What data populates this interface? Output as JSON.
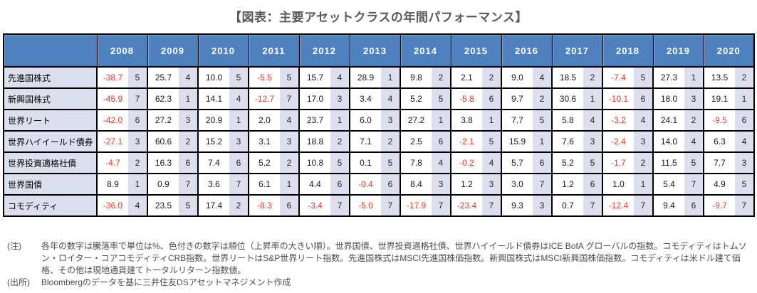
{
  "title": "【図表：主要アセットクラスの年間パフォーマンス】",
  "colors": {
    "header_bg": "#4E81BD",
    "header_text": "#FFFFFF",
    "rank_cell_bg": "#DBDFEE",
    "label_cell_bg": "#DBDFEE",
    "negative_value": "#E43730",
    "grid_border": "#000000",
    "title_text": "#595959",
    "note_text": "#4D4D4D"
  },
  "chart_data": {
    "type": "table",
    "title": "【図表：主要アセットクラスの年間パフォーマンス】",
    "unit": "%（騰落率）、色付きセルは順位",
    "years": [
      "2008",
      "2009",
      "2010",
      "2011",
      "2012",
      "2013",
      "2014",
      "2015",
      "2016",
      "2017",
      "2018",
      "2019",
      "2020"
    ],
    "rows": [
      {
        "label": "先進国株式",
        "cells": [
          [
            "-38.7",
            "5"
          ],
          [
            "25.7",
            "4"
          ],
          [
            "10.0",
            "5"
          ],
          [
            "-5.5",
            "5"
          ],
          [
            "15.7",
            "4"
          ],
          [
            "28.9",
            "1"
          ],
          [
            "9.8",
            "2"
          ],
          [
            "2.1",
            "2"
          ],
          [
            "9.0",
            "4"
          ],
          [
            "18.5",
            "2"
          ],
          [
            "-7.4",
            "5"
          ],
          [
            "27.3",
            "1"
          ],
          [
            "13.5",
            "2"
          ]
        ]
      },
      {
        "label": "新興国株式",
        "cells": [
          [
            "-45.9",
            "7"
          ],
          [
            "62.3",
            "1"
          ],
          [
            "14.1",
            "4"
          ],
          [
            "-12.7",
            "7"
          ],
          [
            "17.0",
            "3"
          ],
          [
            "3.4",
            "4"
          ],
          [
            "5.2",
            "5"
          ],
          [
            "-5.8",
            "6"
          ],
          [
            "9.7",
            "2"
          ],
          [
            "30.6",
            "1"
          ],
          [
            "-10.1",
            "6"
          ],
          [
            "18.0",
            "3"
          ],
          [
            "19.1",
            "1"
          ]
        ]
      },
      {
        "label": "世界リート",
        "cells": [
          [
            "-42.0",
            "6"
          ],
          [
            "27.2",
            "3"
          ],
          [
            "20.9",
            "1"
          ],
          [
            "2.0",
            "4"
          ],
          [
            "23.7",
            "1"
          ],
          [
            "6.0",
            "3"
          ],
          [
            "27.2",
            "1"
          ],
          [
            "3.8",
            "1"
          ],
          [
            "7.7",
            "5"
          ],
          [
            "5.8",
            "4"
          ],
          [
            "-3.2",
            "4"
          ],
          [
            "24.1",
            "2"
          ],
          [
            "-9.5",
            "6"
          ]
        ]
      },
      {
        "label": "世界ハイイールド債券",
        "cells": [
          [
            "-27.1",
            "3"
          ],
          [
            "60.6",
            "2"
          ],
          [
            "15.2",
            "3"
          ],
          [
            "3.1",
            "3"
          ],
          [
            "18.8",
            "2"
          ],
          [
            "7.1",
            "2"
          ],
          [
            "2.5",
            "6"
          ],
          [
            "-2.1",
            "5"
          ],
          [
            "15.9",
            "1"
          ],
          [
            "7.6",
            "3"
          ],
          [
            "-2.4",
            "3"
          ],
          [
            "14.0",
            "4"
          ],
          [
            "6.3",
            "4"
          ]
        ]
      },
      {
        "label": "世界投資適格社債",
        "cells": [
          [
            "-4.7",
            "2"
          ],
          [
            "16.3",
            "6"
          ],
          [
            "7.4",
            "6"
          ],
          [
            "5.2",
            "2"
          ],
          [
            "10.8",
            "5"
          ],
          [
            "0.1",
            "5"
          ],
          [
            "7.8",
            "4"
          ],
          [
            "-0.2",
            "4"
          ],
          [
            "5.7",
            "6"
          ],
          [
            "5.2",
            "5"
          ],
          [
            "-1.7",
            "2"
          ],
          [
            "11.5",
            "5"
          ],
          [
            "7.7",
            "3"
          ]
        ]
      },
      {
        "label": "世界国債",
        "cells": [
          [
            "8.9",
            "1"
          ],
          [
            "0.9",
            "7"
          ],
          [
            "3.6",
            "7"
          ],
          [
            "6.1",
            "1"
          ],
          [
            "4.4",
            "6"
          ],
          [
            "-0.4",
            "6"
          ],
          [
            "8.4",
            "3"
          ],
          [
            "1.2",
            "3"
          ],
          [
            "3.0",
            "7"
          ],
          [
            "1.2",
            "6"
          ],
          [
            "1.0",
            "1"
          ],
          [
            "5.4",
            "7"
          ],
          [
            "4.9",
            "5"
          ]
        ]
      },
      {
        "label": "コモディティ",
        "cells": [
          [
            "-36.0",
            "4"
          ],
          [
            "23.5",
            "5"
          ],
          [
            "17.4",
            "2"
          ],
          [
            "-8.3",
            "6"
          ],
          [
            "-3.4",
            "7"
          ],
          [
            "-5.0",
            "7"
          ],
          [
            "-17.9",
            "7"
          ],
          [
            "-23.4",
            "7"
          ],
          [
            "9.3",
            "3"
          ],
          [
            "0.7",
            "7"
          ],
          [
            "-12.4",
            "7"
          ],
          [
            "9.4",
            "6"
          ],
          [
            "-9.7",
            "7"
          ]
        ]
      }
    ]
  },
  "notes": {
    "note_label": "(注)",
    "note_text": "各年の数字は騰落率で単位は%、色付きの数字は順位（上昇率の大きい順）。世界国債、世界投資適格社債、世界ハイイールド債券はICE BofA グローバルの指数。コモディティはトムソン・ロイター・コアコモディティCRB指数。世界リートはS&P世界リート指数。先進国株式はMSCI先進国株価指数。新興国株式はMSCI新興国株価指数。コモディティは米ドル建て価格、その他は現地通貨建てトータルリターン指数値。",
    "source_label": "(出所)",
    "source_text": "Bloombergのデータを基に三井住友DSアセットマネジメント作成"
  }
}
